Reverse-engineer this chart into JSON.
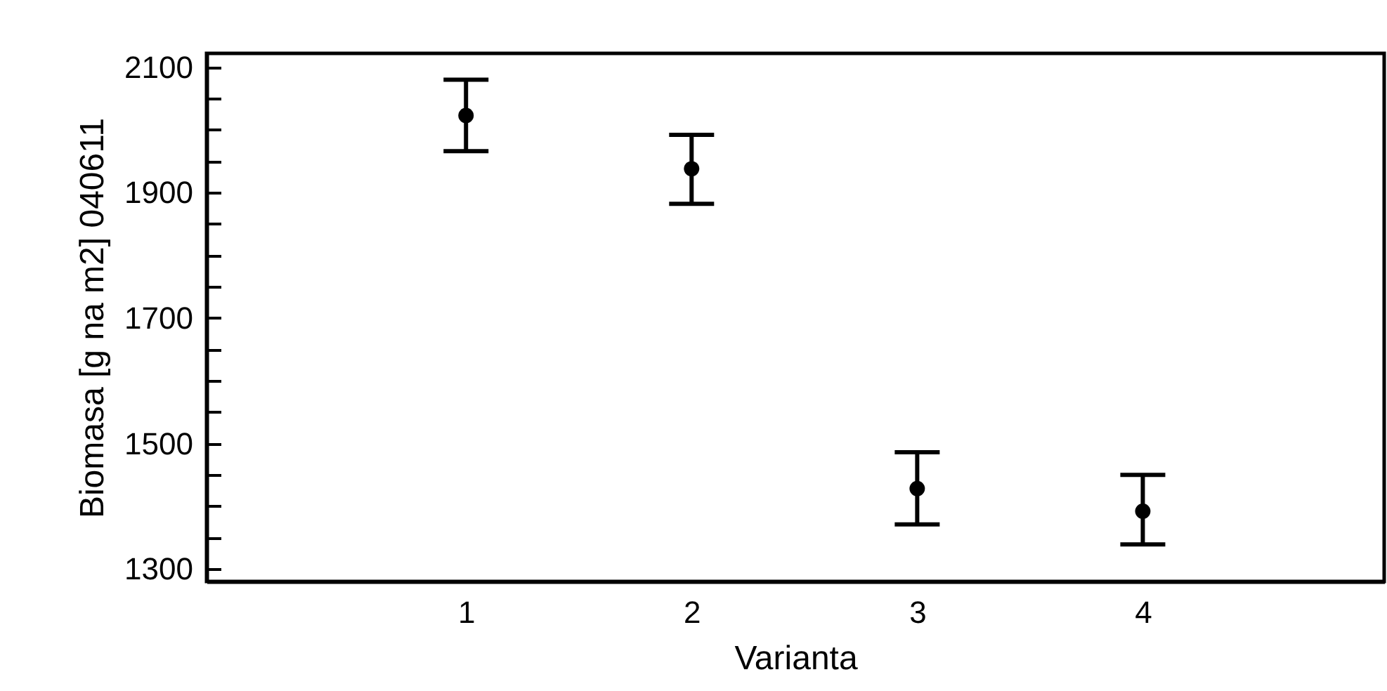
{
  "chart_data": {
    "type": "scatter",
    "xlabel": "Varianta",
    "ylabel": "Biomasa [g na m2] 040611",
    "x": [
      1,
      2,
      3,
      4
    ],
    "values": [
      2023,
      1938,
      1428,
      1392
    ],
    "errors": [
      [
        1966,
        2080
      ],
      [
        1882,
        1992
      ],
      [
        1371,
        1486
      ],
      [
        1339,
        1450
      ]
    ],
    "color": "#000000",
    "marker": "circle",
    "xlim": [
      -0.15,
      5.07
    ],
    "xticks": [
      1,
      2,
      3,
      4
    ],
    "ylim": [
      1280,
      2122
    ],
    "yticks": [
      {
        "value": 1300,
        "label": "1300"
      },
      {
        "value": 1350,
        "label": null
      },
      {
        "value": 1400,
        "label": null
      },
      {
        "value": 1450,
        "label": null
      },
      {
        "value": 1500,
        "label": "1500"
      },
      {
        "value": 1550,
        "label": null
      },
      {
        "value": 1600,
        "label": null
      },
      {
        "value": 1650,
        "label": null
      },
      {
        "value": 1700,
        "label": "1700"
      },
      {
        "value": 1750,
        "label": null
      },
      {
        "value": 1800,
        "label": null
      },
      {
        "value": 1850,
        "label": null
      },
      {
        "value": 1900,
        "label": "1900"
      },
      {
        "value": 1950,
        "label": null
      },
      {
        "value": 2000,
        "label": null
      },
      {
        "value": 2050,
        "label": null
      },
      {
        "value": 2100,
        "label": "2100"
      }
    ],
    "grid": false
  }
}
